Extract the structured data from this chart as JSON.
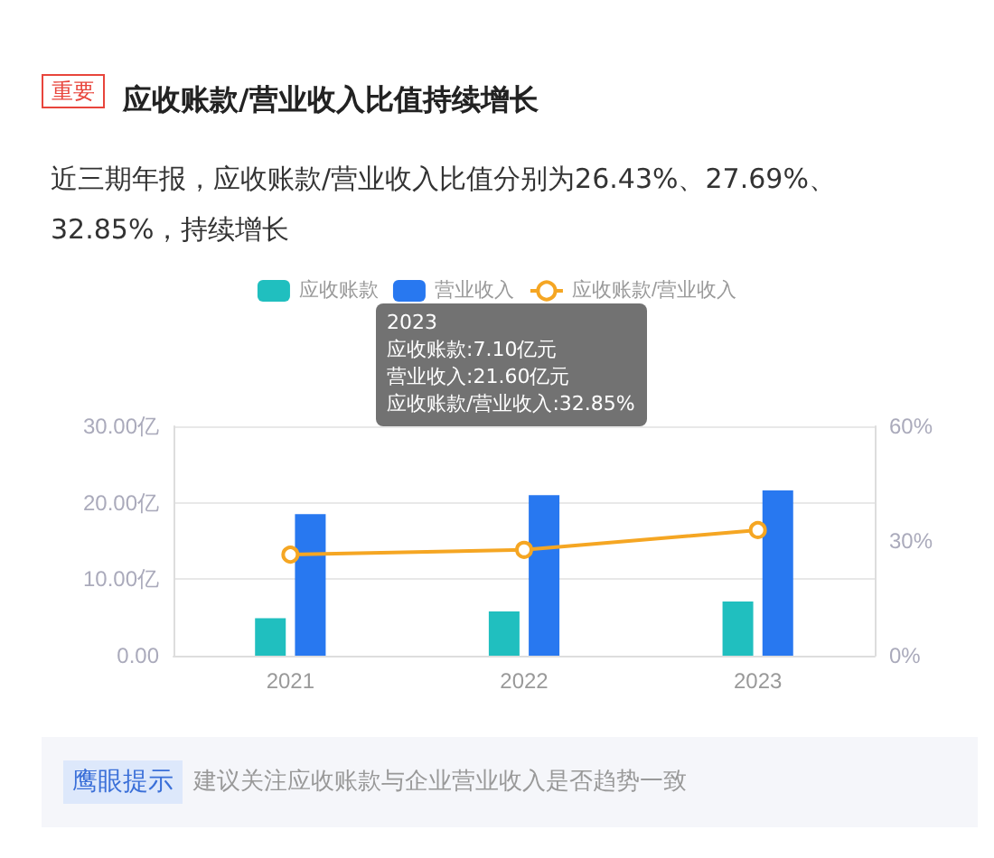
{
  "chart_data": {
    "type": "bar",
    "title": "应收账款/营业收入比值持续增长",
    "subtitle": "近三期年报，应收账款/营业收入比值分别为26.43%、27.69%、32.85%，持续增长",
    "categories": [
      "2021",
      "2022",
      "2023"
    ],
    "series": [
      {
        "name": "应收账款",
        "color": "#20bfbf",
        "values": [
          4.9,
          5.8,
          7.1
        ]
      },
      {
        "name": "营业收入",
        "color": "#2878f0",
        "values": [
          18.5,
          21.0,
          21.6
        ]
      },
      {
        "name": "应收账款/营业收入",
        "type": "line",
        "axis": "y2",
        "color": "#f5a623",
        "values": [
          26.43,
          27.69,
          32.85
        ]
      }
    ],
    "ylim": [
      0,
      30
    ],
    "yticks": [
      {
        "value": 0,
        "label": "0.00"
      },
      {
        "value": 10,
        "label": "10.00亿"
      },
      {
        "value": 20,
        "label": "20.00亿"
      },
      {
        "value": 30,
        "label": "30.00亿"
      }
    ],
    "y2lim": [
      0,
      60
    ],
    "y2ticks": [
      {
        "value": 0,
        "label": "0%"
      },
      {
        "value": 30,
        "label": "30%"
      },
      {
        "value": 60,
        "label": "60%"
      }
    ],
    "grid": "y",
    "legend": "top",
    "marker": "circle",
    "annotations": [
      "重要",
      "2023",
      "应收账款:7.10亿元",
      "营业收入:21.60亿元",
      "应收账款/营业收入:32.85%",
      "鹰眼提示",
      "建议关注应收账款与企业营业收入是否趋势一致"
    ]
  }
}
